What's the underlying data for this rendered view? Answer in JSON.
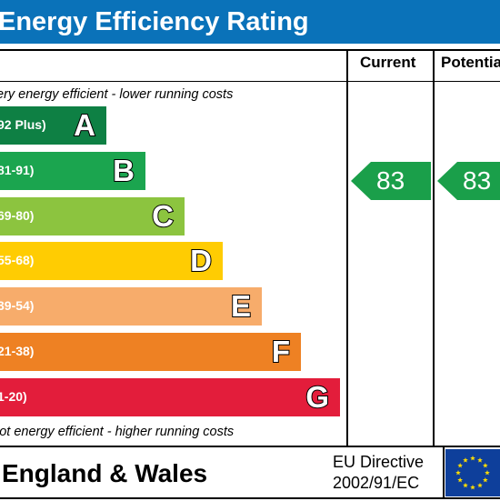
{
  "header": {
    "title": "Energy Efficiency Rating",
    "color": "#0a72b9"
  },
  "columns": {
    "current_label": "Current",
    "potential_label": "Potential"
  },
  "notes": {
    "top": "ery energy efficient - lower running costs",
    "bottom": "lot energy efficient - higher running costs"
  },
  "bands": [
    {
      "range": "92 Plus)",
      "letter": "A",
      "color": "#0e8044"
    },
    {
      "range": "81-91)",
      "letter": "B",
      "color": "#1ba54f"
    },
    {
      "range": "69-80)",
      "letter": "C",
      "color": "#8cc43f"
    },
    {
      "range": "55-68)",
      "letter": "D",
      "color": "#ffcc02"
    },
    {
      "range": "39-54)",
      "letter": "E",
      "color": "#f7ac6b"
    },
    {
      "range": "21-38)",
      "letter": "F",
      "color": "#ee8123"
    },
    {
      "range": "1-20)",
      "letter": "G",
      "color": "#e31d3b"
    }
  ],
  "ratings": {
    "current": "83",
    "potential": "83",
    "arrow_color": "#1a9f4a"
  },
  "footer": {
    "region": "England & Wales",
    "directive_line1": "EU Directive",
    "directive_line2": "2002/91/EC",
    "flag_icon": "eu-flag-icon",
    "flag_color": "#0e3f9b",
    "star_color": "#ffdd00"
  }
}
